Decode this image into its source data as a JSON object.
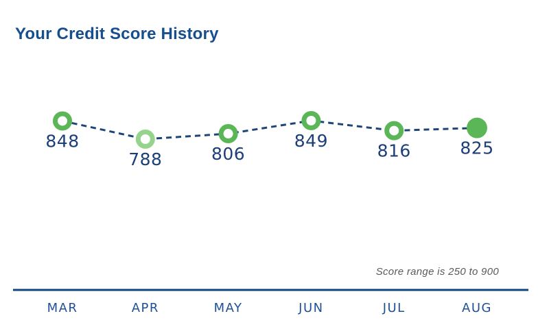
{
  "title": "Your Credit Score History",
  "note": "Score range is 250 to 900",
  "colors": {
    "background": "#ffffff",
    "title": "#164e8e",
    "score_label": "#1c3f79",
    "month_label": "#1e4f97",
    "dash_line": "#1b4677",
    "axis_line": "#10457e",
    "note_text": "#58595b",
    "green_medium": "#5bb657",
    "green_light": "#96d48e",
    "marker_hole": "#ffffff"
  },
  "chart_data": {
    "type": "line",
    "title": "Your Credit Score History",
    "categories": [
      "MAR",
      "APR",
      "MAY",
      "JUN",
      "JUL",
      "AUG"
    ],
    "series": [
      {
        "name": "Credit Score",
        "values": [
          848,
          788,
          806,
          849,
          816,
          825
        ]
      }
    ],
    "line_style": "dashed",
    "marker_styles": [
      "ring",
      "ring-light",
      "ring",
      "ring",
      "ring",
      "filled"
    ],
    "data_labels": [
      "848",
      "788",
      "806",
      "849",
      "816",
      "825"
    ],
    "score_range": [
      250,
      900
    ],
    "annotation": "Score range is 250 to 900",
    "xlabel": "",
    "ylabel": "",
    "grid": false,
    "legend_position": "none"
  }
}
